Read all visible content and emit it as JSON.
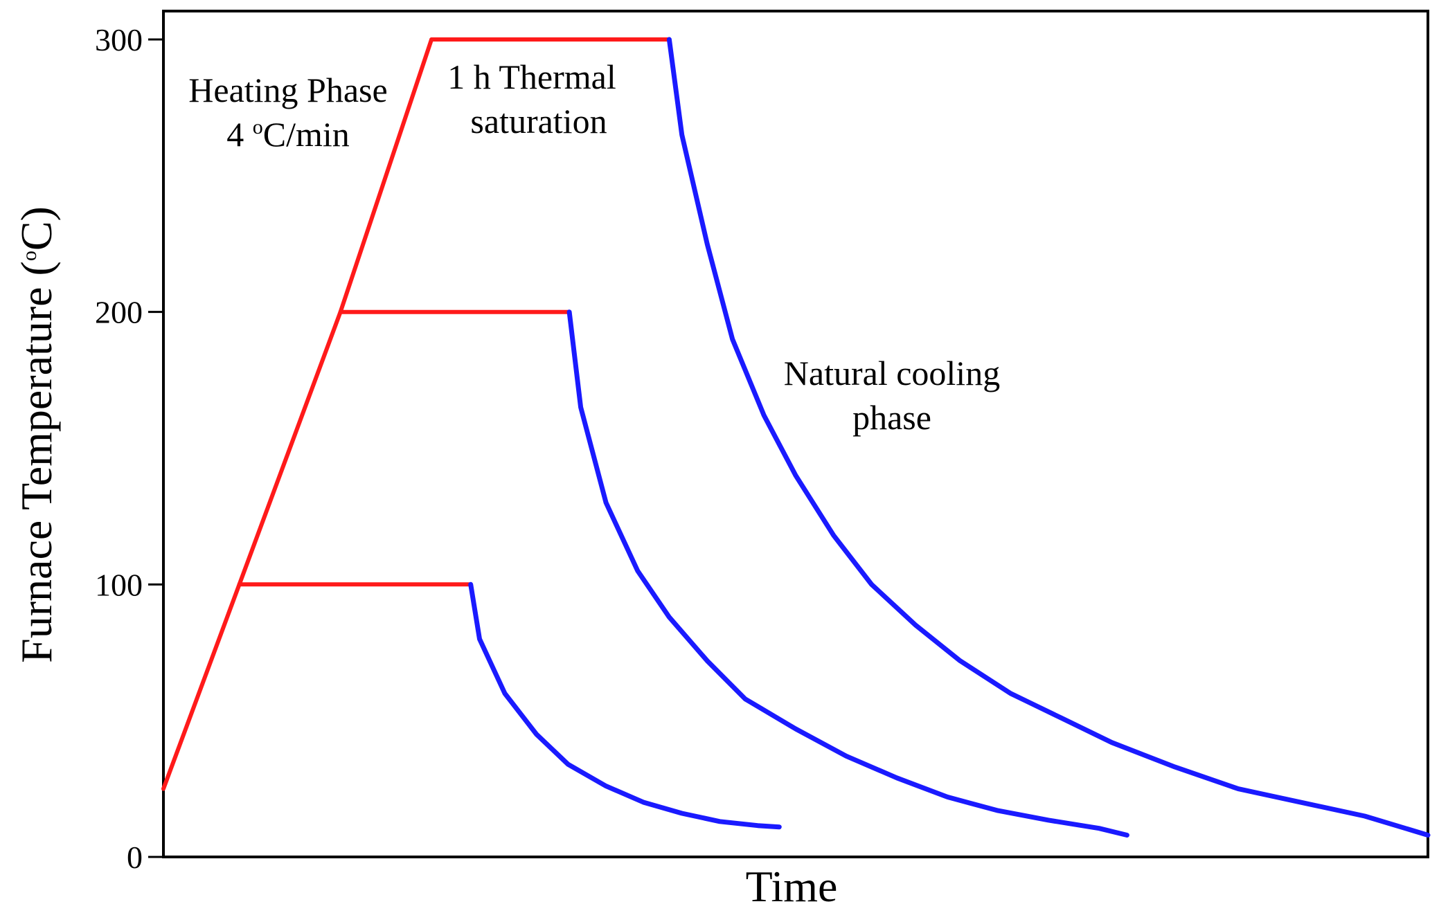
{
  "chart_data": {
    "type": "line",
    "title": "",
    "xlabel": "Time",
    "ylabel_parts": {
      "before": "Furnace Temperature (",
      "sup": "o",
      "after": "C)"
    },
    "ylim": [
      0,
      300
    ],
    "y_ticks": [
      {
        "value": 0,
        "label": "0"
      },
      {
        "value": 100,
        "label": "100"
      },
      {
        "value": 200,
        "label": "200"
      },
      {
        "value": 300,
        "label": "300"
      }
    ],
    "x_ticks": [],
    "grid": false,
    "xlim": [
      0,
      100
    ],
    "colors": {
      "heating": "#ff1a1a",
      "cooling": "#1a1aff",
      "axis": "#000000"
    },
    "series": [
      {
        "name": "Heating phase (4 °C/min)",
        "color": "#ff1a1a",
        "points": [
          [
            0,
            25
          ],
          [
            6,
            100
          ],
          [
            14,
            200
          ],
          [
            21.2,
            300
          ]
        ]
      },
      {
        "name": "Thermal saturation 100",
        "color": "#ff1a1a",
        "points": [
          [
            6,
            100
          ],
          [
            24.3,
            100
          ]
        ]
      },
      {
        "name": "Thermal saturation 200",
        "color": "#ff1a1a",
        "points": [
          [
            14,
            200
          ],
          [
            32.1,
            200
          ]
        ]
      },
      {
        "name": "Thermal saturation 300",
        "color": "#ff1a1a",
        "points": [
          [
            21.2,
            300
          ],
          [
            40,
            300
          ]
        ]
      },
      {
        "name": "Cooling from 100",
        "color": "#1a1aff",
        "points": [
          [
            24.3,
            100
          ],
          [
            25,
            80
          ],
          [
            27,
            60
          ],
          [
            29.5,
            45
          ],
          [
            32,
            34
          ],
          [
            35,
            26
          ],
          [
            38,
            20
          ],
          [
            41,
            16
          ],
          [
            44,
            13
          ],
          [
            47,
            11.5
          ],
          [
            48.7,
            11
          ]
        ]
      },
      {
        "name": "Cooling from 200",
        "color": "#1a1aff",
        "points": [
          [
            32.1,
            200
          ],
          [
            33,
            165
          ],
          [
            35,
            130
          ],
          [
            37.5,
            105
          ],
          [
            40,
            88
          ],
          [
            43,
            72
          ],
          [
            46,
            58
          ],
          [
            50,
            47
          ],
          [
            54,
            37
          ],
          [
            58,
            29
          ],
          [
            62,
            22
          ],
          [
            66,
            17
          ],
          [
            70,
            13.5
          ],
          [
            74,
            10.5
          ],
          [
            76.2,
            8
          ]
        ]
      },
      {
        "name": "Cooling from 300",
        "color": "#1a1aff",
        "points": [
          [
            40,
            300
          ],
          [
            41,
            265
          ],
          [
            43,
            225
          ],
          [
            45,
            190
          ],
          [
            47.5,
            162
          ],
          [
            50,
            140
          ],
          [
            53,
            118
          ],
          [
            56,
            100
          ],
          [
            59.5,
            85
          ],
          [
            63,
            72
          ],
          [
            67,
            60
          ],
          [
            71,
            51
          ],
          [
            75,
            42
          ],
          [
            80,
            33
          ],
          [
            85,
            25
          ],
          [
            90,
            20
          ],
          [
            95,
            15
          ],
          [
            100,
            8
          ]
        ]
      }
    ],
    "annotations": [
      {
        "id": "heating",
        "lines": [
          "Heating Phase"
        ],
        "sub": {
          "before": "4 ",
          "sup": "o",
          "after": "C/min"
        }
      },
      {
        "id": "saturation",
        "lines": [
          "1 h Thermal",
          "saturation"
        ]
      },
      {
        "id": "cooling",
        "lines": [
          "Natural cooling",
          "phase"
        ]
      }
    ]
  }
}
